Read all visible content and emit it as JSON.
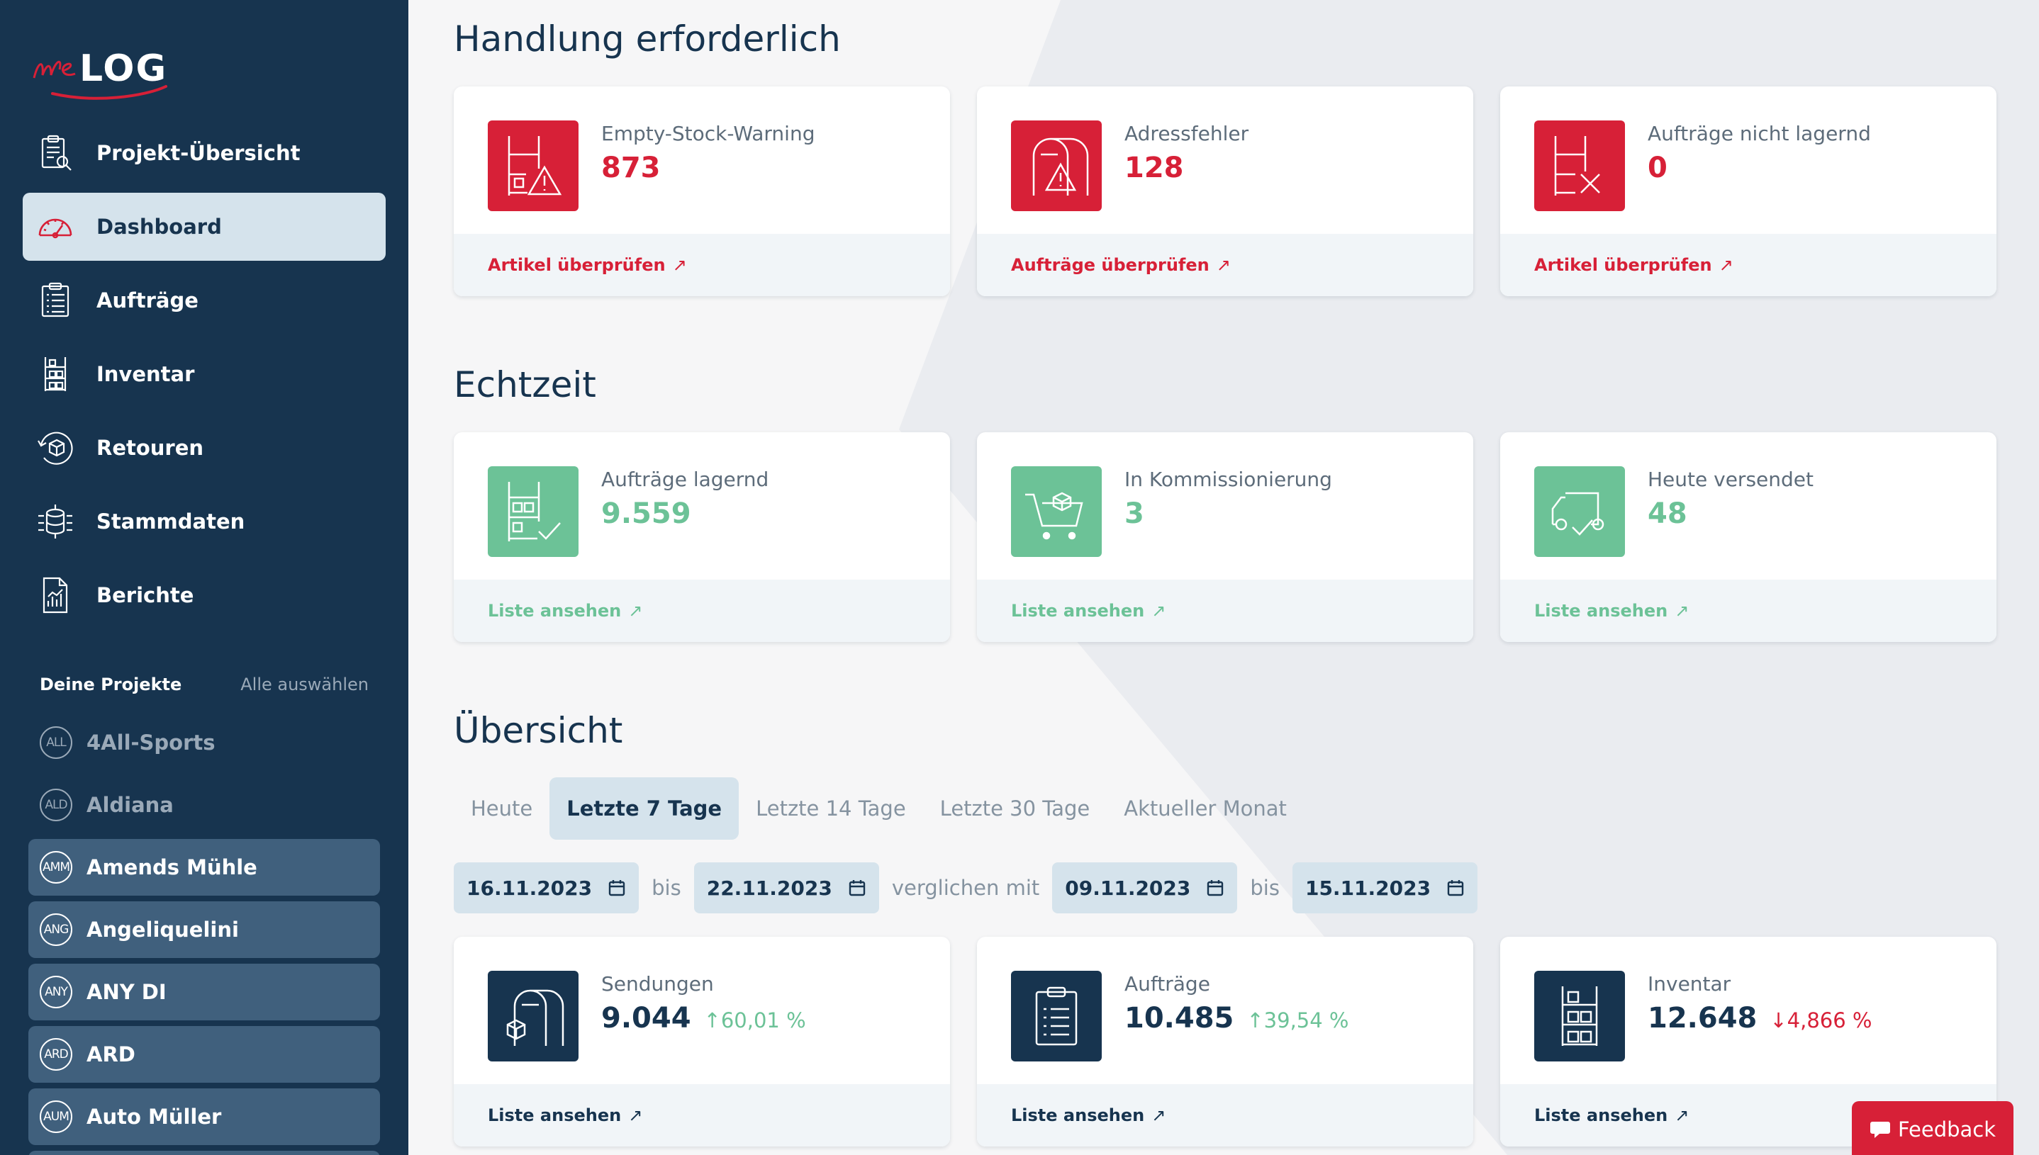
{
  "app": {
    "logo_text": "weLOG",
    "colors": {
      "sidebar": "#17344f",
      "accent_red": "#d72037",
      "accent_green": "#6cc297",
      "active_bg": "#d5e3ec"
    }
  },
  "sidebar": {
    "nav": [
      {
        "label": "Projekt-Übersicht",
        "icon": "project-overview-icon"
      },
      {
        "label": "Dashboard",
        "icon": "dashboard-gauge-icon",
        "active": true
      },
      {
        "label": "Aufträge",
        "icon": "clipboard-list-icon"
      },
      {
        "label": "Inventar",
        "icon": "shelf-boxes-icon"
      },
      {
        "label": "Retouren",
        "icon": "return-box-icon"
      },
      {
        "label": "Stammdaten",
        "icon": "master-data-icon"
      },
      {
        "label": "Berichte",
        "icon": "report-chart-icon"
      }
    ],
    "projects_title": "Deine Projekte",
    "select_all": "Alle auswählen",
    "projects": [
      {
        "badge": "ALL",
        "label": "4All-Sports",
        "selected": false
      },
      {
        "badge": "ALD",
        "label": "Aldiana",
        "selected": false
      },
      {
        "badge": "AMM",
        "label": "Amends Mühle",
        "selected": true
      },
      {
        "badge": "ANG",
        "label": "Angeliquelini",
        "selected": true
      },
      {
        "badge": "ANY",
        "label": "ANY DI",
        "selected": true
      },
      {
        "badge": "ARD",
        "label": "ARD",
        "selected": true
      },
      {
        "badge": "AUM",
        "label": "Auto Müller",
        "selected": true
      }
    ]
  },
  "sections": {
    "action": {
      "title": "Handlung erforderlich",
      "cards": [
        {
          "label": "Empty-Stock-Warning",
          "value": "873",
          "link": "Artikel überprüfen",
          "icon": "shelf-warning-icon"
        },
        {
          "label": "Adressfehler",
          "value": "128",
          "link": "Aufträge überprüfen",
          "icon": "mailbox-warning-icon"
        },
        {
          "label": "Aufträge nicht lagernd",
          "value": "0",
          "link": "Artikel überprüfen",
          "icon": "shelf-x-icon"
        }
      ]
    },
    "realtime": {
      "title": "Echtzeit",
      "cards": [
        {
          "label": "Aufträge lagernd",
          "value": "9.559",
          "link": "Liste ansehen",
          "icon": "shelf-check-icon"
        },
        {
          "label": "In Kommissionierung",
          "value": "3",
          "link": "Liste ansehen",
          "icon": "cart-box-icon"
        },
        {
          "label": "Heute versendet",
          "value": "48",
          "link": "Liste ansehen",
          "icon": "truck-check-icon"
        }
      ]
    },
    "overview": {
      "title": "Übersicht",
      "tabs": [
        {
          "label": "Heute",
          "active": false
        },
        {
          "label": "Letzte 7 Tage",
          "active": true
        },
        {
          "label": "Letzte 14 Tage",
          "active": false
        },
        {
          "label": "Letzte 30 Tage",
          "active": false
        },
        {
          "label": "Aktueller Monat",
          "active": false
        }
      ],
      "date_from": "16.11.2023",
      "bis_1": "bis",
      "date_to": "22.11.2023",
      "compare_label": "verglichen mit",
      "compare_from": "09.11.2023",
      "bis_2": "bis",
      "compare_to": "15.11.2023",
      "cards": [
        {
          "label": "Sendungen",
          "value": "9.044",
          "change": "60,01 %",
          "direction": "up",
          "link": "Liste ansehen",
          "icon": "mailbox-box-icon"
        },
        {
          "label": "Aufträge",
          "value": "10.485",
          "change": "39,54 %",
          "direction": "up",
          "link": "Liste ansehen",
          "icon": "clipboard-list-icon"
        },
        {
          "label": "Inventar",
          "value": "12.648",
          "change": "4,866 %",
          "direction": "down",
          "link": "Liste ansehen",
          "icon": "shelf-boxes-icon"
        }
      ]
    }
  },
  "feedback": {
    "label": "Feedback",
    "icon": "chat-bubble-icon"
  },
  "link_arrow": "↗",
  "arrow_up": "↑",
  "arrow_down": "↓"
}
